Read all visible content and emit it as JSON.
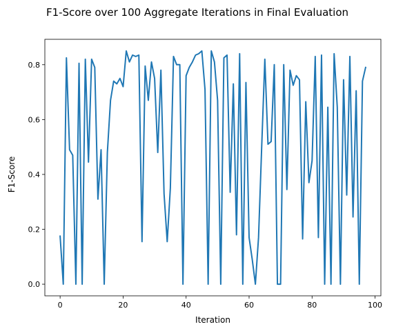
{
  "chart_data": {
    "type": "line",
    "title": "F1-Score over 100 Aggregate Iterations in Final Evaluation",
    "xlabel": "Iteration",
    "ylabel": "F1-Score",
    "xlim": [
      -4.85,
      101.85
    ],
    "ylim": [
      -0.0425,
      0.8925
    ],
    "xticks": [
      0,
      20,
      40,
      60,
      80,
      100
    ],
    "yticks": [
      0.0,
      0.2,
      0.4,
      0.6,
      0.8
    ],
    "ytick_labels": [
      "0.0",
      "0.2",
      "0.4",
      "0.6",
      "0.8"
    ],
    "grid": false,
    "series_color": "#1f77b4",
    "x": [
      0,
      1,
      2,
      3,
      4,
      5,
      6,
      7,
      8,
      9,
      10,
      11,
      12,
      13,
      14,
      15,
      16,
      17,
      18,
      19,
      20,
      21,
      22,
      23,
      24,
      25,
      26,
      27,
      28,
      29,
      30,
      31,
      32,
      33,
      34,
      35,
      36,
      37,
      38,
      39,
      40,
      41,
      42,
      43,
      44,
      45,
      46,
      47,
      48,
      49,
      50,
      51,
      52,
      53,
      54,
      55,
      56,
      57,
      58,
      59,
      60,
      61,
      62,
      63,
      64,
      65,
      66,
      67,
      68,
      69,
      70,
      71,
      72,
      73,
      74,
      75,
      76,
      77,
      78,
      79,
      80,
      81,
      82,
      83,
      84,
      85,
      86,
      87,
      88,
      89,
      90,
      91,
      92,
      93,
      94,
      95,
      96,
      97
    ],
    "y": [
      0.175,
      0.0,
      0.825,
      0.49,
      0.47,
      0.0,
      0.805,
      0.0,
      0.82,
      0.445,
      0.82,
      0.79,
      0.31,
      0.49,
      0.0,
      0.48,
      0.67,
      0.74,
      0.73,
      0.75,
      0.72,
      0.85,
      0.81,
      0.835,
      0.83,
      0.835,
      0.155,
      0.795,
      0.67,
      0.81,
      0.75,
      0.48,
      0.78,
      0.33,
      0.155,
      0.35,
      0.83,
      0.8,
      0.8,
      0.0,
      0.76,
      0.79,
      0.81,
      0.835,
      0.84,
      0.85,
      0.71,
      0.0,
      0.85,
      0.81,
      0.67,
      0.0,
      0.825,
      0.835,
      0.335,
      0.73,
      0.18,
      0.84,
      0.0,
      0.735,
      0.17,
      0.09,
      0.0,
      0.17,
      0.5,
      0.82,
      0.51,
      0.52,
      0.8,
      0.0,
      0.0,
      0.8,
      0.345,
      0.78,
      0.725,
      0.76,
      0.745,
      0.165,
      0.665,
      0.37,
      0.45,
      0.83,
      0.17,
      0.835,
      0.0,
      0.645,
      0.0,
      0.84,
      0.645,
      0.0,
      0.745,
      0.325,
      0.83,
      0.245,
      0.705,
      0.0,
      0.74,
      0.79
    ]
  }
}
